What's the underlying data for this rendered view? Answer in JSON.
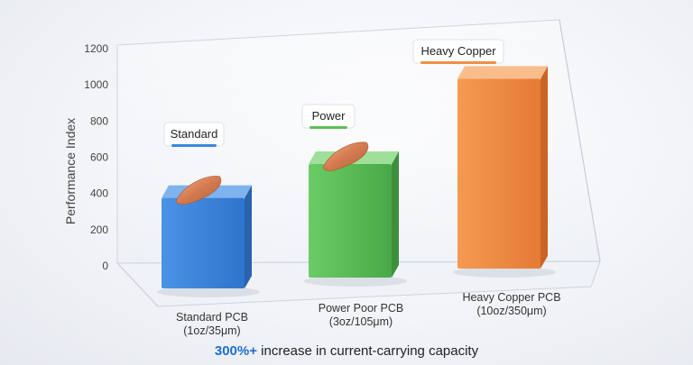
{
  "chart_data": {
    "type": "bar",
    "ylabel": "Performance Index",
    "xlabel": "",
    "ylim": [
      0,
      1200
    ],
    "yticks": [
      0,
      200,
      400,
      600,
      800,
      1000,
      1200
    ],
    "grid": false,
    "categories": [
      {
        "line1": "Standard PCB",
        "line2": "(1oz/35μm)"
      },
      {
        "line1": "Power Poor PCB",
        "line2": "(3oz/105μm)"
      },
      {
        "line1": "Heavy Copper PCB",
        "line2": "(10oz/350μm)"
      }
    ],
    "values": [
      510,
      640,
      1070
    ],
    "badges": [
      "Standard",
      "Power",
      "Heavy Copper"
    ],
    "colors": {
      "standard": "#3d86dc",
      "power": "#5cc159",
      "heavy": "#f08f47",
      "copper": "#d9825a"
    }
  },
  "footnote": {
    "highlight": "300%+",
    "text": " increase in current-carrying capacity"
  }
}
